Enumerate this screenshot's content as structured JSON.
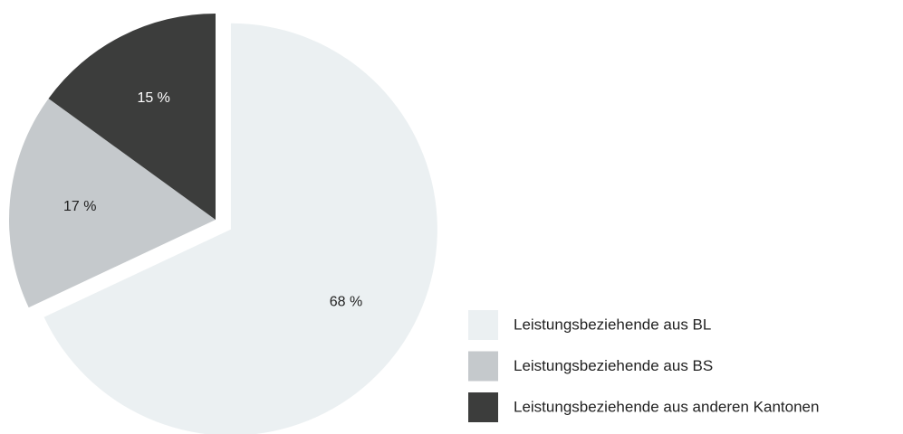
{
  "chart_data": {
    "type": "pie",
    "categories": [
      "Leistungsbeziehende aus BL",
      "Leistungsbeziehende aus BS",
      "Leistungsbeziehende aus anderen Kantonen"
    ],
    "values": [
      68,
      17,
      15
    ],
    "value_labels": [
      "68 %",
      "17 %",
      "15 %"
    ],
    "colors": [
      "#ebf0f2",
      "#c5c9cc",
      "#3c3d3c"
    ],
    "legend": "right"
  }
}
